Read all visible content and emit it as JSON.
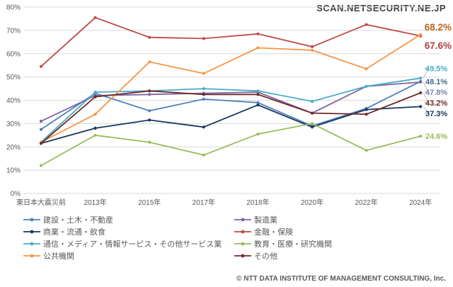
{
  "watermark": "SCAN.NETSECURITY.NE.JP",
  "footer": "© NTT DATA INSTITUTE OF MANAGEMENT CONSULTING, Inc.",
  "chart_data": {
    "type": "line",
    "title": "",
    "xlabel": "",
    "ylabel": "",
    "ylim": [
      0,
      80
    ],
    "ytick_step": 10,
    "ytick_suffix": "%",
    "grid": true,
    "legend_position": "bottom, two columns",
    "categories": [
      "東日本大震災前",
      "2013年",
      "2015年",
      "2017年",
      "2018年",
      "2020年",
      "2022年",
      "2024年"
    ],
    "series": [
      {
        "name": "建設・土木・不動産",
        "color": "#4F81BD",
        "values": [
          27.5,
          43,
          35.5,
          40.5,
          39,
          29,
          36.5,
          48.1
        ],
        "end_label": "48.1%",
        "end_label_style": "small",
        "end_label_color": "#44698D"
      },
      {
        "name": "製造業",
        "color": "#8064A2",
        "values": [
          31,
          42,
          42.5,
          43,
          43.5,
          34.5,
          46,
          47.8
        ],
        "end_label": "47.8%",
        "end_label_style": "small",
        "end_label_color": "#7A86A8"
      },
      {
        "name": "商業・流通・飲食",
        "color": "#17375E",
        "values": [
          21.5,
          28,
          31.5,
          28.5,
          38,
          28.5,
          36,
          37.3
        ],
        "end_label": "37.3%",
        "end_label_style": "small",
        "end_label_color": "#17375E"
      },
      {
        "name": "金融・保険",
        "color": "#BE4B48",
        "values": [
          54.5,
          75.5,
          67,
          66.5,
          68.5,
          63,
          72.5,
          67.6
        ],
        "end_label": "67.6%",
        "end_label_style": "large",
        "end_label_color": "#B04240"
      },
      {
        "name": "通信・メディア・情報サービス・その他サービス業",
        "color": "#4BACC6",
        "values": [
          22,
          43.5,
          44,
          45,
          44,
          39.5,
          46,
          49.5
        ],
        "end_label": "49.5%",
        "end_label_style": "small",
        "end_label_color": "#4BACC6"
      },
      {
        "name": "教育・医療・研究機関",
        "color": "#9BBB59",
        "values": [
          12,
          25,
          22,
          16.5,
          25.5,
          30,
          18.5,
          24.6
        ],
        "end_label": "24.6%",
        "end_label_style": "small",
        "end_label_color": "#9BBB59"
      },
      {
        "name": "公共機関",
        "color": "#F79646",
        "values": [
          22,
          34,
          56.5,
          51.5,
          62.5,
          61.5,
          53.5,
          68.2
        ],
        "end_label": "68.2%",
        "end_label_style": "large",
        "end_label_color": "#C0651B"
      },
      {
        "name": "その他",
        "color": "#6E2B28",
        "values": [
          21.5,
          41.5,
          44,
          42.5,
          42.5,
          34.5,
          34,
          43.2
        ],
        "end_label": "43.2%",
        "end_label_style": "small",
        "end_label_color": "#6E2B28"
      }
    ]
  }
}
